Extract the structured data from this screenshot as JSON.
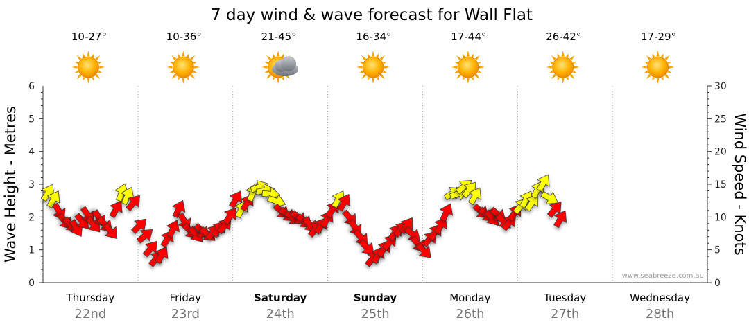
{
  "chart_data": {
    "type": "line",
    "title": "7 day wind & wave forecast for Wall Flat",
    "ylabel_left": "Wave Height - Metres",
    "ylabel_right": "Wind Speed - Knots",
    "ylim_left": [
      0,
      6
    ],
    "ylim_right": [
      0,
      30
    ],
    "yticks_left": [
      "0",
      "1",
      "2",
      "3",
      "4",
      "5",
      "6"
    ],
    "yticks_right": [
      "0",
      "5",
      "10",
      "15",
      "20",
      "25",
      "30"
    ],
    "grid": "dotted vertical at day boundaries",
    "credit": "www.seabreeze.com.au",
    "days": [
      {
        "day": "Thursday",
        "date": "22nd",
        "bold": false,
        "temp": "10-27°",
        "weather": "sunny"
      },
      {
        "day": "Friday",
        "date": "23rd",
        "bold": false,
        "temp": "10-36°",
        "weather": "sunny"
      },
      {
        "day": "Saturday",
        "date": "24th",
        "bold": true,
        "temp": "21-45°",
        "weather": "partly-cloudy"
      },
      {
        "day": "Sunday",
        "date": "25th",
        "bold": true,
        "temp": "16-34°",
        "weather": "sunny"
      },
      {
        "day": "Monday",
        "date": "26th",
        "bold": false,
        "temp": "17-44°",
        "weather": "sunny"
      },
      {
        "day": "Tuesday",
        "date": "27th",
        "bold": false,
        "temp": "26-42°",
        "weather": "sunny"
      },
      {
        "day": "Wednesday",
        "date": "28th",
        "bold": false,
        "temp": "17-29°",
        "weather": "sunny"
      }
    ],
    "series": [
      {
        "name": "Wind",
        "unit": "knots",
        "color_good": "#ffff00",
        "color_bad": "#ff0000",
        "points": [
          {
            "t": 0.0,
            "kn": 13.5,
            "dir": 30,
            "c": "y"
          },
          {
            "t": 0.06,
            "kn": 12.5,
            "dir": 30,
            "c": "y"
          },
          {
            "t": 0.12,
            "kn": 11.0,
            "dir": 150,
            "c": "r"
          },
          {
            "t": 0.18,
            "kn": 9.5,
            "dir": 140,
            "c": "r"
          },
          {
            "t": 0.24,
            "kn": 9.0,
            "dir": 135,
            "c": "r"
          },
          {
            "t": 0.3,
            "kn": 8.5,
            "dir": 150,
            "c": "r"
          },
          {
            "t": 0.36,
            "kn": 9.5,
            "dir": 140,
            "c": "r"
          },
          {
            "t": 0.42,
            "kn": 10.5,
            "dir": 145,
            "c": "r"
          },
          {
            "t": 0.48,
            "kn": 9.0,
            "dir": 140,
            "c": "r"
          },
          {
            "t": 0.54,
            "kn": 10.0,
            "dir": 150,
            "c": "r"
          },
          {
            "t": 0.6,
            "kn": 9.0,
            "dir": 135,
            "c": "r"
          },
          {
            "t": 0.66,
            "kn": 8.0,
            "dir": 140,
            "c": "r"
          },
          {
            "t": 0.72,
            "kn": 11.0,
            "dir": 30,
            "c": "r"
          },
          {
            "t": 0.78,
            "kn": 13.5,
            "dir": 20,
            "c": "y"
          },
          {
            "t": 0.84,
            "kn": 13.0,
            "dir": 25,
            "c": "y"
          },
          {
            "t": 0.9,
            "kn": 12.0,
            "dir": 40,
            "c": "r"
          },
          {
            "t": 0.96,
            "kn": 8.5,
            "dir": 45,
            "c": "r"
          },
          {
            "t": 1.02,
            "kn": 7.0,
            "dir": 50,
            "c": "r"
          },
          {
            "t": 1.08,
            "kn": 5.0,
            "dir": 40,
            "c": "r"
          },
          {
            "t": 1.14,
            "kn": 3.5,
            "dir": 40,
            "c": "r"
          },
          {
            "t": 1.2,
            "kn": 4.0,
            "dir": 30,
            "c": "r"
          },
          {
            "t": 1.26,
            "kn": 6.5,
            "dir": 30,
            "c": "r"
          },
          {
            "t": 1.32,
            "kn": 8.0,
            "dir": 25,
            "c": "r"
          },
          {
            "t": 1.38,
            "kn": 11.0,
            "dir": 25,
            "c": "r"
          },
          {
            "t": 1.44,
            "kn": 9.5,
            "dir": 150,
            "c": "r"
          },
          {
            "t": 1.5,
            "kn": 8.0,
            "dir": 135,
            "c": "r"
          },
          {
            "t": 1.56,
            "kn": 7.5,
            "dir": 140,
            "c": "r"
          },
          {
            "t": 1.62,
            "kn": 8.0,
            "dir": 135,
            "c": "r"
          },
          {
            "t": 1.68,
            "kn": 7.5,
            "dir": 130,
            "c": "r"
          },
          {
            "t": 1.74,
            "kn": 7.5,
            "dir": 40,
            "c": "r"
          },
          {
            "t": 1.8,
            "kn": 8.0,
            "dir": 35,
            "c": "r"
          },
          {
            "t": 1.86,
            "kn": 8.5,
            "dir": 40,
            "c": "r"
          },
          {
            "t": 1.92,
            "kn": 10.0,
            "dir": 35,
            "c": "r"
          },
          {
            "t": 1.98,
            "kn": 12.5,
            "dir": 30,
            "c": "r"
          },
          {
            "t": 2.04,
            "kn": 11.0,
            "dir": 25,
            "c": "y"
          },
          {
            "t": 2.1,
            "kn": 12.0,
            "dir": 30,
            "c": "r"
          },
          {
            "t": 2.16,
            "kn": 13.5,
            "dir": 20,
            "c": "y"
          },
          {
            "t": 2.22,
            "kn": 14.5,
            "dir": 70,
            "c": "y"
          },
          {
            "t": 2.28,
            "kn": 14.0,
            "dir": 80,
            "c": "y"
          },
          {
            "t": 2.34,
            "kn": 13.5,
            "dir": 95,
            "c": "y"
          },
          {
            "t": 2.4,
            "kn": 12.5,
            "dir": 110,
            "c": "y"
          },
          {
            "t": 2.46,
            "kn": 11.0,
            "dir": 130,
            "c": "r"
          },
          {
            "t": 2.52,
            "kn": 10.5,
            "dir": 130,
            "c": "r"
          },
          {
            "t": 2.58,
            "kn": 10.0,
            "dir": 125,
            "c": "r"
          },
          {
            "t": 2.64,
            "kn": 10.0,
            "dir": 130,
            "c": "r"
          },
          {
            "t": 2.7,
            "kn": 9.5,
            "dir": 130,
            "c": "r"
          },
          {
            "t": 2.76,
            "kn": 9.0,
            "dir": 140,
            "c": "r"
          },
          {
            "t": 2.82,
            "kn": 8.0,
            "dir": 40,
            "c": "r"
          },
          {
            "t": 2.88,
            "kn": 8.5,
            "dir": 35,
            "c": "r"
          },
          {
            "t": 2.94,
            "kn": 9.5,
            "dir": 30,
            "c": "r"
          },
          {
            "t": 3.0,
            "kn": 11.0,
            "dir": 35,
            "c": "r"
          },
          {
            "t": 3.06,
            "kn": 12.5,
            "dir": 30,
            "c": "y"
          },
          {
            "t": 3.12,
            "kn": 12.0,
            "dir": 30,
            "c": "r"
          },
          {
            "t": 3.18,
            "kn": 10.0,
            "dir": 140,
            "c": "r"
          },
          {
            "t": 3.24,
            "kn": 8.5,
            "dir": 145,
            "c": "r"
          },
          {
            "t": 3.3,
            "kn": 7.0,
            "dir": 140,
            "c": "r"
          },
          {
            "t": 3.36,
            "kn": 5.5,
            "dir": 135,
            "c": "r"
          },
          {
            "t": 3.42,
            "kn": 3.5,
            "dir": 40,
            "c": "r"
          },
          {
            "t": 3.48,
            "kn": 4.0,
            "dir": 30,
            "c": "r"
          },
          {
            "t": 3.54,
            "kn": 5.0,
            "dir": 35,
            "c": "r"
          },
          {
            "t": 3.6,
            "kn": 6.0,
            "dir": 40,
            "c": "r"
          },
          {
            "t": 3.66,
            "kn": 7.5,
            "dir": 35,
            "c": "r"
          },
          {
            "t": 3.72,
            "kn": 8.0,
            "dir": 40,
            "c": "r"
          },
          {
            "t": 3.78,
            "kn": 8.5,
            "dir": 35,
            "c": "r"
          },
          {
            "t": 3.84,
            "kn": 7.5,
            "dir": 130,
            "c": "r"
          },
          {
            "t": 3.9,
            "kn": 6.0,
            "dir": 140,
            "c": "r"
          },
          {
            "t": 3.96,
            "kn": 5.0,
            "dir": 135,
            "c": "r"
          },
          {
            "t": 4.02,
            "kn": 6.5,
            "dir": 40,
            "c": "r"
          },
          {
            "t": 4.08,
            "kn": 7.5,
            "dir": 35,
            "c": "r"
          },
          {
            "t": 4.14,
            "kn": 8.5,
            "dir": 30,
            "c": "r"
          },
          {
            "t": 4.2,
            "kn": 10.5,
            "dir": 25,
            "c": "r"
          },
          {
            "t": 4.26,
            "kn": 13.5,
            "dir": 60,
            "c": "y"
          },
          {
            "t": 4.32,
            "kn": 13.5,
            "dir": 70,
            "c": "y"
          },
          {
            "t": 4.38,
            "kn": 14.5,
            "dir": 50,
            "c": "y"
          },
          {
            "t": 4.44,
            "kn": 14.0,
            "dir": 40,
            "c": "y"
          },
          {
            "t": 4.5,
            "kn": 13.0,
            "dir": 30,
            "c": "y"
          },
          {
            "t": 4.56,
            "kn": 11.0,
            "dir": 130,
            "c": "r"
          },
          {
            "t": 4.62,
            "kn": 10.5,
            "dir": 130,
            "c": "r"
          },
          {
            "t": 4.68,
            "kn": 10.0,
            "dir": 140,
            "c": "r"
          },
          {
            "t": 4.74,
            "kn": 10.5,
            "dir": 130,
            "c": "r"
          },
          {
            "t": 4.8,
            "kn": 9.5,
            "dir": 135,
            "c": "r"
          },
          {
            "t": 4.86,
            "kn": 9.0,
            "dir": 40,
            "c": "r"
          },
          {
            "t": 4.92,
            "kn": 10.5,
            "dir": 35,
            "c": "r"
          },
          {
            "t": 4.98,
            "kn": 11.5,
            "dir": 40,
            "c": "y"
          },
          {
            "t": 5.04,
            "kn": 12.5,
            "dir": 30,
            "c": "y"
          },
          {
            "t": 5.1,
            "kn": 12.0,
            "dir": 35,
            "c": "y"
          },
          {
            "t": 5.16,
            "kn": 14.0,
            "dir": 30,
            "c": "y"
          },
          {
            "t": 5.22,
            "kn": 15.0,
            "dir": 30,
            "c": "y"
          },
          {
            "t": 5.28,
            "kn": 13.0,
            "dir": 120,
            "c": "y"
          },
          {
            "t": 5.34,
            "kn": 11.0,
            "dir": 40,
            "c": "r"
          },
          {
            "t": 5.4,
            "kn": 9.5,
            "dir": 30,
            "c": "r"
          }
        ]
      }
    ]
  }
}
